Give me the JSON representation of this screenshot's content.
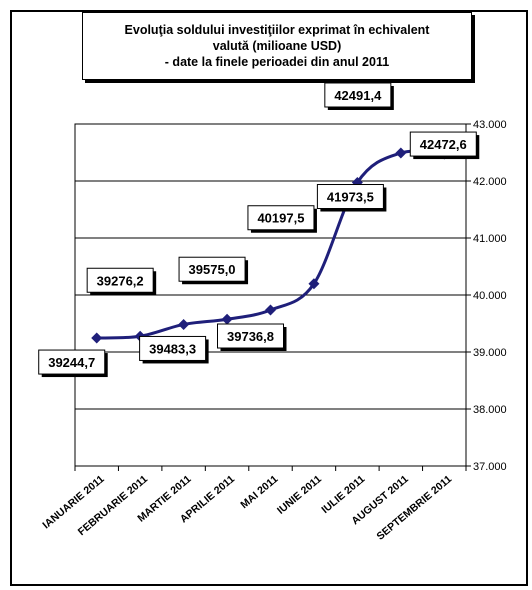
{
  "chart_data": {
    "type": "line",
    "title": "Evoluţia soldului investiţiilor exprimat în echivalent\nvalută (milioane USD)\n- date la finele perioadei din anul 2011",
    "xlabel": "",
    "ylabel": "",
    "categories": [
      "IANUARIE 2011",
      "FEBRUARIE 2011",
      "MARTIE 2011",
      "APRILIE 2011",
      "MAI 2011",
      "IUNIE 2011",
      "IULIE 2011",
      "AUGUST 2011",
      "SEPTEMBRIE 2011"
    ],
    "values": [
      39244.7,
      39276.2,
      39483.3,
      39575.0,
      39736.8,
      40197.5,
      41973.5,
      42491.4,
      42472.6
    ],
    "data_labels": [
      "39244,7",
      "39276,2",
      "39483,3",
      "39575,0",
      "39736,8",
      "40197,5",
      "41973,5",
      "42491,4",
      "42472,6"
    ],
    "ylim": [
      37000,
      43000
    ],
    "y_ticks": [
      37000,
      38000,
      39000,
      40000,
      41000,
      42000,
      43000
    ],
    "y_tick_labels": [
      "37.000",
      "38.000",
      "39.000",
      "40.000",
      "41.000",
      "42.000",
      "43.000"
    ],
    "y_axis_side": "right",
    "grid": true,
    "legend": "none",
    "line_color": "#1f1f7a",
    "marker": "diamond"
  }
}
